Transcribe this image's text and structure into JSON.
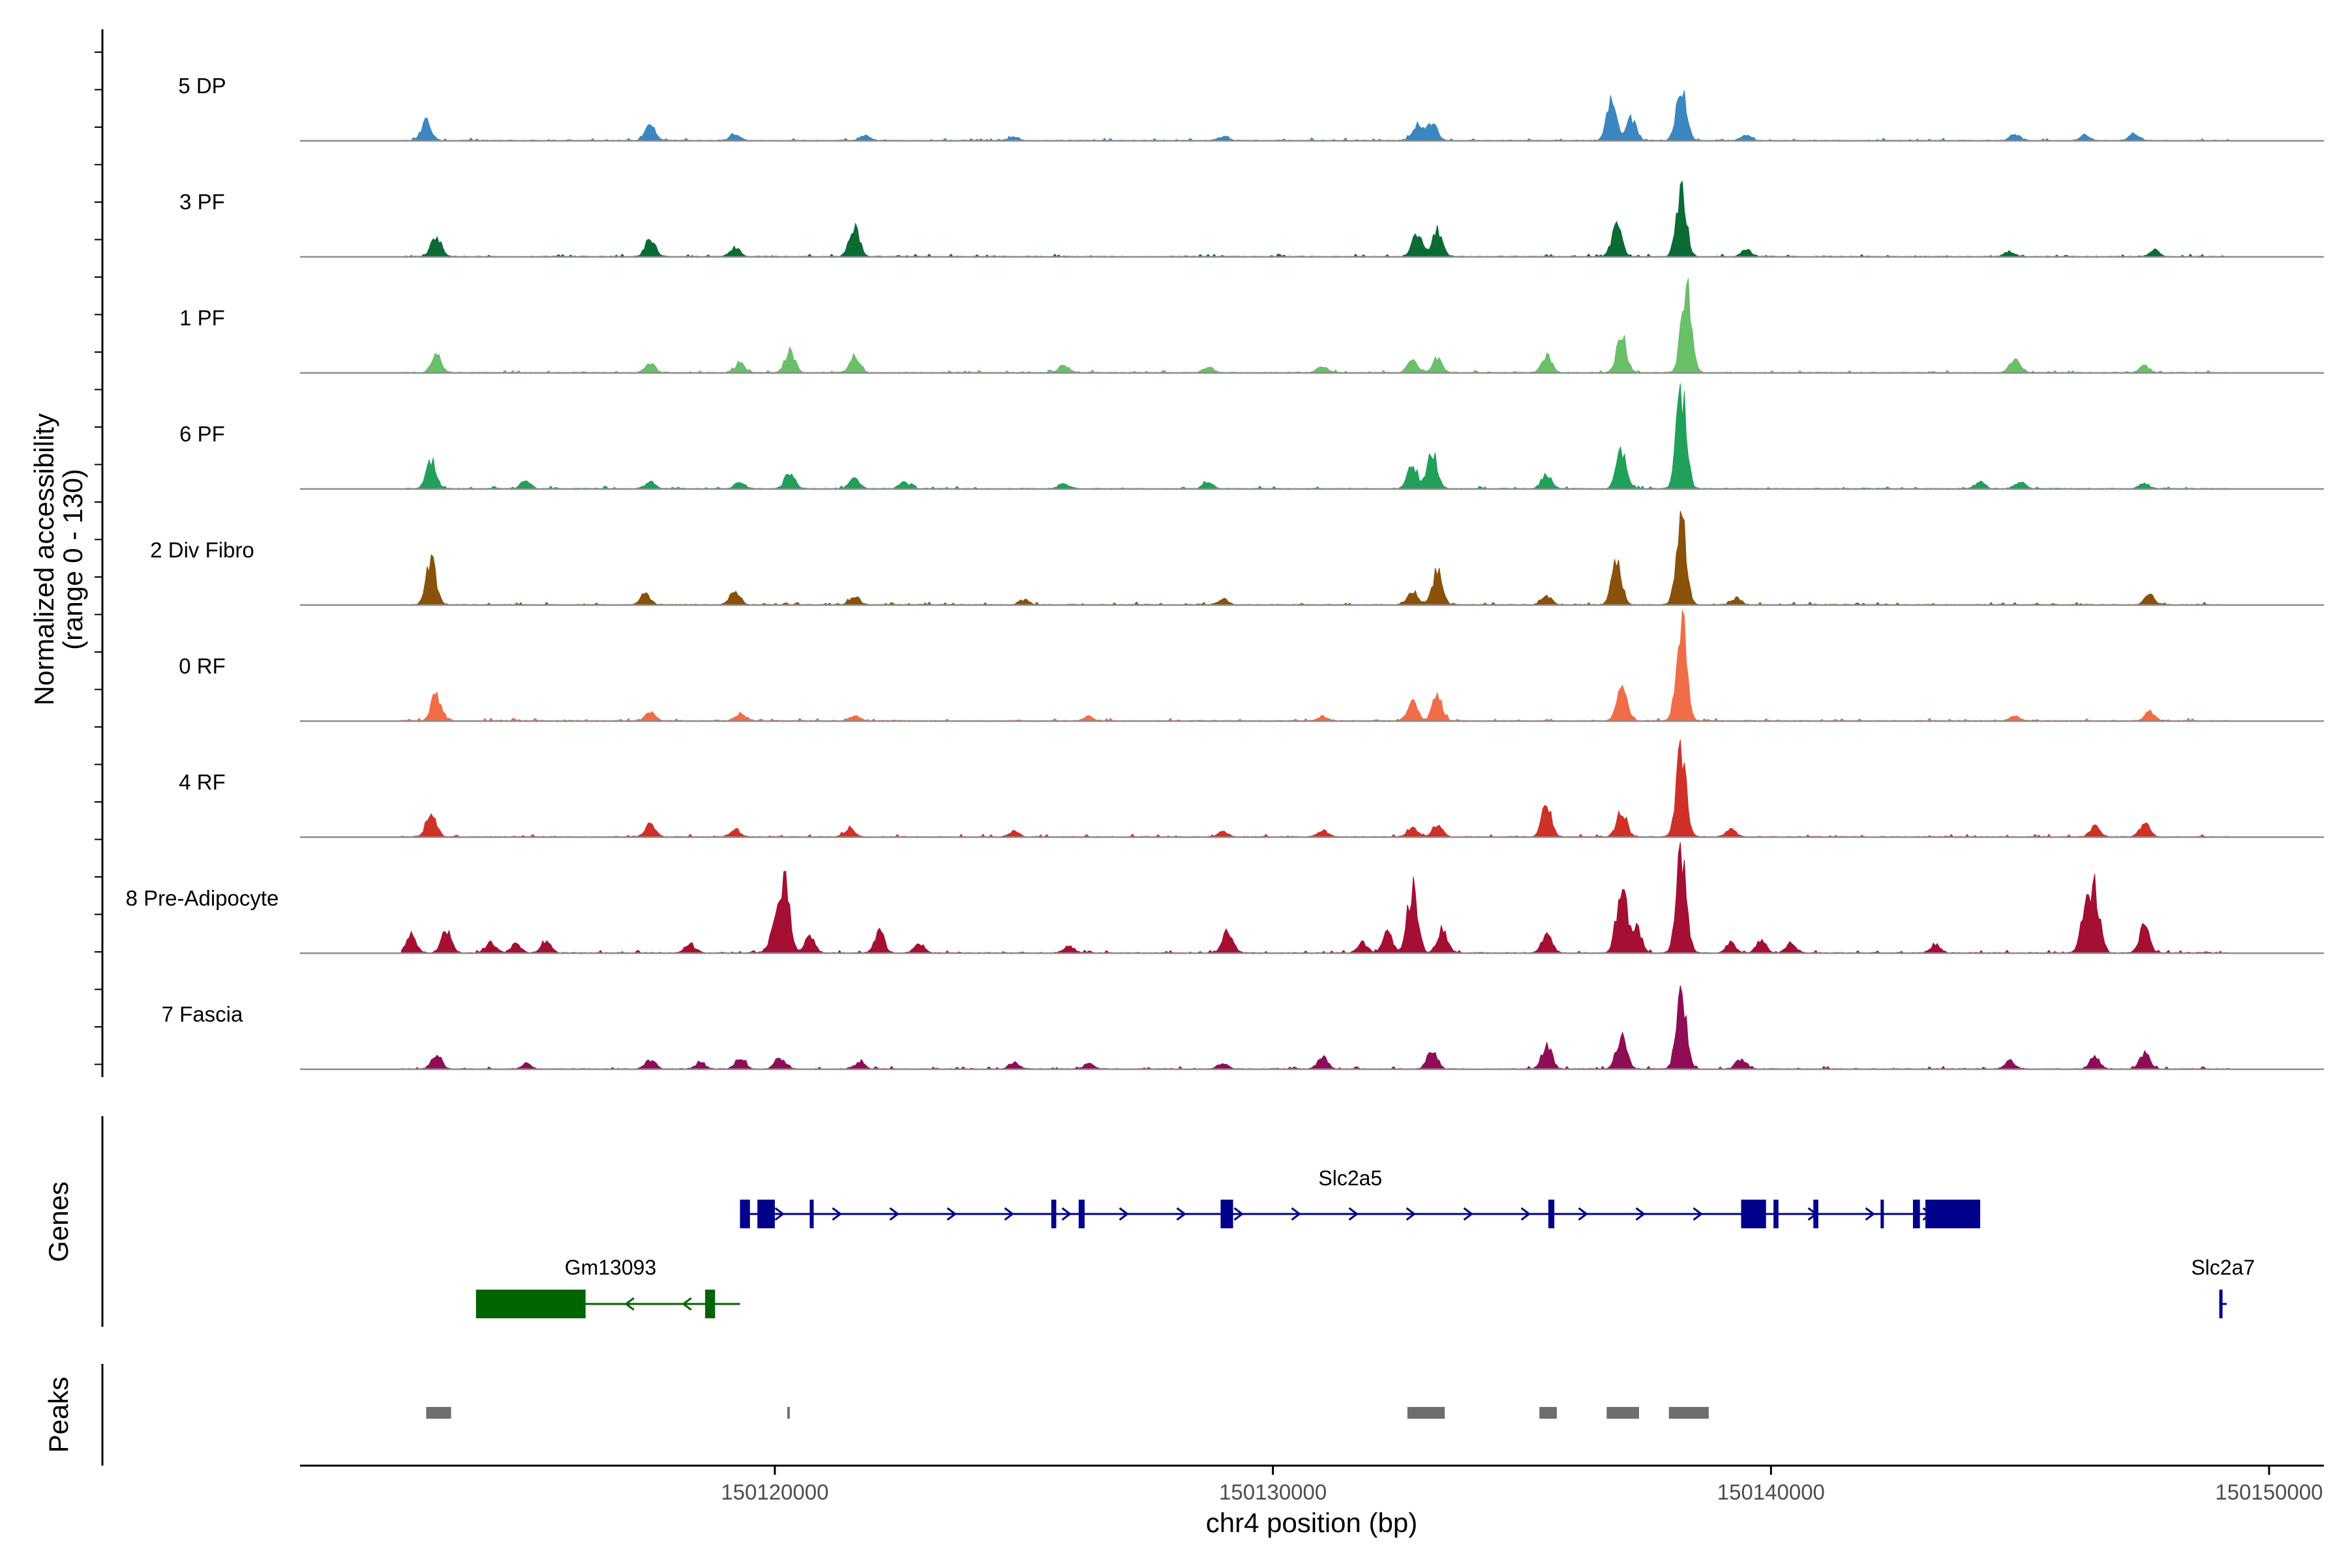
{
  "chart_data": {
    "type": "area",
    "title": "",
    "ylabel": [
      "Normalized accessibility",
      "(range 0 - 130)"
    ],
    "xlabel": "chr4 position (bp)",
    "ylim": [
      0,
      130
    ],
    "xlim": [
      150110500,
      150151000
    ],
    "xticks": [
      150120000,
      150130000,
      150140000,
      150150000
    ],
    "xtick_labels": [
      "150120000",
      "150130000",
      "150140000",
      "150150000"
    ],
    "series": [
      {
        "name": "5 DP",
        "color": "#3a87c2",
        "peaks": [
          [
            150113000,
            22
          ],
          [
            150117500,
            18
          ],
          [
            150119200,
            8
          ],
          [
            150121800,
            6
          ],
          [
            150124800,
            4
          ],
          [
            150129000,
            4
          ],
          [
            150132900,
            18
          ],
          [
            150133200,
            20
          ],
          [
            150136800,
            45
          ],
          [
            150137200,
            25
          ],
          [
            150138200,
            60
          ],
          [
            150139500,
            6
          ],
          [
            150144900,
            8
          ],
          [
            150146300,
            6
          ],
          [
            150147300,
            8
          ]
        ]
      },
      {
        "name": "3 PF",
        "color": "#0a6b35",
        "peaks": [
          [
            150113200,
            24
          ],
          [
            150117500,
            22
          ],
          [
            150119200,
            10
          ],
          [
            150121600,
            35
          ],
          [
            150132900,
            28
          ],
          [
            150133300,
            30
          ],
          [
            150136900,
            35
          ],
          [
            150138200,
            75
          ],
          [
            150139500,
            8
          ],
          [
            150144800,
            6
          ],
          [
            150147700,
            8
          ]
        ]
      },
      {
        "name": "1 PF",
        "color": "#6abf69",
        "peaks": [
          [
            150113200,
            22
          ],
          [
            150117500,
            10
          ],
          [
            150119300,
            12
          ],
          [
            150120300,
            25
          ],
          [
            150121600,
            20
          ],
          [
            150125800,
            8
          ],
          [
            150128700,
            6
          ],
          [
            150131000,
            8
          ],
          [
            150132800,
            14
          ],
          [
            150133300,
            16
          ],
          [
            150135500,
            20
          ],
          [
            150137000,
            42
          ],
          [
            150138300,
            100
          ],
          [
            150144900,
            18
          ],
          [
            150147500,
            8
          ]
        ]
      },
      {
        "name": "6 PF",
        "color": "#21a05a",
        "peaks": [
          [
            150113100,
            32
          ],
          [
            150115000,
            8
          ],
          [
            150117500,
            8
          ],
          [
            150119300,
            8
          ],
          [
            150120300,
            18
          ],
          [
            150121600,
            12
          ],
          [
            150122600,
            8
          ],
          [
            150125800,
            6
          ],
          [
            150128700,
            8
          ],
          [
            150132800,
            28
          ],
          [
            150133200,
            42
          ],
          [
            150135500,
            16
          ],
          [
            150137000,
            45
          ],
          [
            150138200,
            110
          ],
          [
            150144200,
            8
          ],
          [
            150145000,
            8
          ],
          [
            150147500,
            6
          ]
        ]
      },
      {
        "name": "2 Div Fibro",
        "color": "#8a510b",
        "peaks": [
          [
            150113100,
            52
          ],
          [
            150117400,
            12
          ],
          [
            150119200,
            16
          ],
          [
            150121600,
            10
          ],
          [
            150125000,
            6
          ],
          [
            150129000,
            6
          ],
          [
            150132800,
            16
          ],
          [
            150133300,
            38
          ],
          [
            150135500,
            10
          ],
          [
            150136900,
            48
          ],
          [
            150138200,
            100
          ],
          [
            150139300,
            8
          ],
          [
            150147600,
            12
          ]
        ]
      },
      {
        "name": "0 RF",
        "color": "#f16d47",
        "peaks": [
          [
            150113200,
            30
          ],
          [
            150117500,
            10
          ],
          [
            150119300,
            8
          ],
          [
            150121600,
            6
          ],
          [
            150126300,
            5
          ],
          [
            150131000,
            4
          ],
          [
            150132800,
            22
          ],
          [
            150133300,
            28
          ],
          [
            150137000,
            42
          ],
          [
            150138200,
            120
          ],
          [
            150144900,
            6
          ],
          [
            150147600,
            10
          ]
        ]
      },
      {
        "name": "4 RF",
        "color": "#cf3027",
        "peaks": [
          [
            150113100,
            30
          ],
          [
            150117500,
            16
          ],
          [
            150119200,
            8
          ],
          [
            150121500,
            10
          ],
          [
            150124800,
            6
          ],
          [
            150129000,
            6
          ],
          [
            150131000,
            8
          ],
          [
            150132800,
            12
          ],
          [
            150133300,
            14
          ],
          [
            150135500,
            38
          ],
          [
            150137000,
            30
          ],
          [
            150138200,
            100
          ],
          [
            150139200,
            8
          ],
          [
            150146500,
            12
          ],
          [
            150147500,
            16
          ]
        ]
      },
      {
        "name": "8 Pre-Adipocyte",
        "color": "#a50f33",
        "peaks": [
          [
            150112700,
            22
          ],
          [
            150113400,
            26
          ],
          [
            150114300,
            12
          ],
          [
            150114800,
            10
          ],
          [
            150115400,
            14
          ],
          [
            150118300,
            10
          ],
          [
            150120000,
            32
          ],
          [
            150120200,
            80
          ],
          [
            150120700,
            18
          ],
          [
            150122100,
            24
          ],
          [
            150122900,
            10
          ],
          [
            150125900,
            8
          ],
          [
            150129100,
            26
          ],
          [
            150131800,
            12
          ],
          [
            150132300,
            22
          ],
          [
            150132800,
            75
          ],
          [
            150133400,
            28
          ],
          [
            150135500,
            22
          ],
          [
            150137000,
            80
          ],
          [
            150137300,
            30
          ],
          [
            150138200,
            120
          ],
          [
            150139200,
            12
          ],
          [
            150139800,
            14
          ],
          [
            150140400,
            12
          ],
          [
            150143300,
            10
          ],
          [
            150146300,
            40
          ],
          [
            150146500,
            70
          ],
          [
            150147500,
            30
          ]
        ]
      },
      {
        "name": "7 Fascia",
        "color": "#8f0d56",
        "peaks": [
          [
            150113200,
            18
          ],
          [
            150115000,
            6
          ],
          [
            150117500,
            10
          ],
          [
            150118500,
            8
          ],
          [
            150119300,
            12
          ],
          [
            150120100,
            14
          ],
          [
            150121700,
            8
          ],
          [
            150124800,
            8
          ],
          [
            150126300,
            6
          ],
          [
            150129000,
            6
          ],
          [
            150131000,
            14
          ],
          [
            150133200,
            22
          ],
          [
            150135500,
            28
          ],
          [
            150137000,
            40
          ],
          [
            150138200,
            90
          ],
          [
            150139400,
            12
          ],
          [
            150144800,
            10
          ],
          [
            150146500,
            14
          ],
          [
            150147500,
            18
          ]
        ]
      }
    ],
    "genes_track": {
      "label": "Genes",
      "genes": [
        {
          "name": "Slc2a5",
          "strand": "+",
          "color": "#00008b",
          "start": 150119300,
          "end": 150144200,
          "exons": [
            [
              150119300,
              150119500
            ],
            [
              150119650,
              150120000
            ],
            [
              150120700,
              150120780
            ],
            [
              150125550,
              150125650
            ],
            [
              150126100,
              150126220
            ],
            [
              150128950,
              150129200
            ],
            [
              150135530,
              150135650
            ],
            [
              150139400,
              150139900
            ],
            [
              150140050,
              150140150
            ],
            [
              150140850,
              150140950
            ],
            [
              150142200,
              150142260
            ],
            [
              150142850,
              150142990
            ],
            [
              150143100,
              150144200
            ]
          ]
        },
        {
          "name": "Gm13093",
          "strand": "-",
          "color": "#006400",
          "start": 150114000,
          "end": 150119300,
          "exons": [
            [
              150114000,
              150116200
            ],
            [
              150118600,
              150118800
            ]
          ]
        },
        {
          "name": "Slc2a7",
          "strand": "+",
          "color": "#00008b",
          "start": 150149000,
          "end": 150149150,
          "exons": [
            [
              150149000,
              150149050
            ]
          ]
        }
      ]
    },
    "peaks_track": {
      "label": "Peaks",
      "color": "#6e6e6e",
      "regions": [
        [
          150113000,
          150113500
        ],
        [
          150120250,
          150120300
        ],
        [
          150132700,
          150133450
        ],
        [
          150135350,
          150135700
        ],
        [
          150136700,
          150137350
        ],
        [
          150137950,
          150138750
        ]
      ]
    }
  }
}
